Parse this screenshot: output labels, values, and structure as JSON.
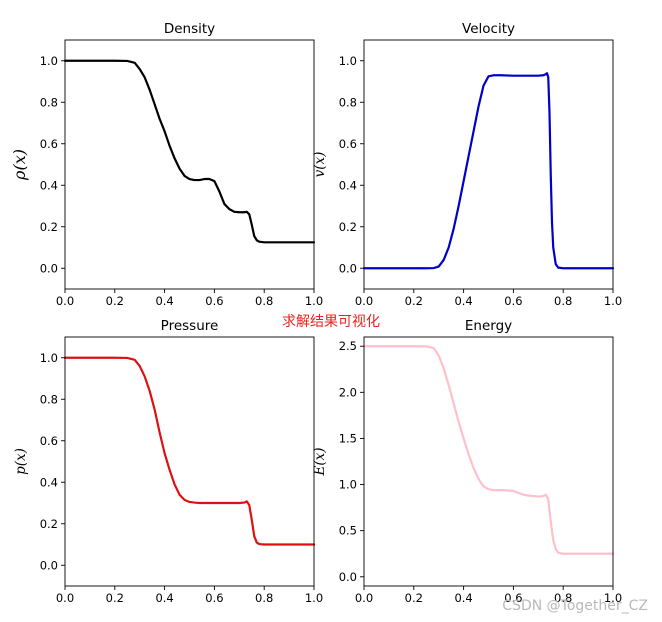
{
  "caption": "求解结果可视化",
  "watermark": "CSDN @Together_CZ",
  "chart_data": [
    {
      "type": "line",
      "title": "Density",
      "xlabel": "",
      "ylabel": "ρ(x)",
      "xlim": [
        0,
        1
      ],
      "ylim": [
        -0.1,
        1.1
      ],
      "xticks": [
        0.0,
        0.2,
        0.4,
        0.6,
        0.8,
        1.0
      ],
      "xtick_labels": [
        "0.0",
        "0.2",
        "0.4",
        "0.6",
        "0.8",
        "1.0"
      ],
      "yticks": [
        0.0,
        0.2,
        0.4,
        0.6,
        0.8,
        1.0
      ],
      "ytick_labels": [
        "0.0",
        "0.2",
        "0.4",
        "0.6",
        "0.8",
        "1.0"
      ],
      "color": "#000000",
      "series": [
        {
          "name": "density",
          "x": [
            0,
            0.05,
            0.1,
            0.15,
            0.2,
            0.25,
            0.28,
            0.3,
            0.32,
            0.34,
            0.36,
            0.38,
            0.4,
            0.42,
            0.44,
            0.46,
            0.48,
            0.5,
            0.52,
            0.54,
            0.56,
            0.58,
            0.6,
            0.62,
            0.64,
            0.66,
            0.68,
            0.7,
            0.72,
            0.73,
            0.74,
            0.75,
            0.76,
            0.77,
            0.78,
            0.8,
            0.85,
            0.9,
            0.95,
            1.0
          ],
          "y": [
            1.0,
            1.0,
            1.0,
            1.0,
            1.0,
            0.999,
            0.99,
            0.96,
            0.92,
            0.86,
            0.79,
            0.72,
            0.66,
            0.59,
            0.53,
            0.48,
            0.445,
            0.43,
            0.425,
            0.425,
            0.43,
            0.43,
            0.42,
            0.37,
            0.31,
            0.285,
            0.272,
            0.27,
            0.27,
            0.272,
            0.26,
            0.21,
            0.155,
            0.135,
            0.128,
            0.125,
            0.125,
            0.125,
            0.125,
            0.125
          ]
        }
      ]
    },
    {
      "type": "line",
      "title": "Velocity",
      "xlabel": "",
      "ylabel": "v(x)",
      "xlim": [
        0,
        1
      ],
      "ylim": [
        -0.1,
        1.1
      ],
      "xticks": [
        0.0,
        0.2,
        0.4,
        0.6,
        0.8,
        1.0
      ],
      "xtick_labels": [
        "0.0",
        "0.2",
        "0.4",
        "0.6",
        "0.8",
        "1.0"
      ],
      "yticks": [
        0.0,
        0.2,
        0.4,
        0.6,
        0.8,
        1.0
      ],
      "ytick_labels": [
        "0.0",
        "0.2",
        "0.4",
        "0.6",
        "0.8",
        "1.0"
      ],
      "color": "#0000cc",
      "series": [
        {
          "name": "velocity",
          "x": [
            0,
            0.1,
            0.2,
            0.25,
            0.28,
            0.3,
            0.32,
            0.34,
            0.36,
            0.38,
            0.4,
            0.42,
            0.44,
            0.46,
            0.48,
            0.5,
            0.52,
            0.55,
            0.6,
            0.65,
            0.7,
            0.72,
            0.73,
            0.735,
            0.74,
            0.745,
            0.75,
            0.755,
            0.76,
            0.77,
            0.78,
            0.8,
            0.85,
            0.9,
            1.0
          ],
          "y": [
            0.0,
            0.0,
            0.0,
            0.0,
            0.001,
            0.008,
            0.04,
            0.1,
            0.19,
            0.3,
            0.42,
            0.54,
            0.66,
            0.78,
            0.88,
            0.925,
            0.93,
            0.93,
            0.928,
            0.928,
            0.928,
            0.93,
            0.935,
            0.94,
            0.92,
            0.75,
            0.45,
            0.22,
            0.1,
            0.02,
            0.003,
            0.0,
            0.0,
            0.0,
            0.0
          ]
        }
      ]
    },
    {
      "type": "line",
      "title": "Pressure",
      "xlabel": "",
      "ylabel": "p(x)",
      "xlim": [
        0,
        1
      ],
      "ylim": [
        -0.1,
        1.1
      ],
      "xticks": [
        0.0,
        0.2,
        0.4,
        0.6,
        0.8,
        1.0
      ],
      "xtick_labels": [
        "0.0",
        "0.2",
        "0.4",
        "0.6",
        "0.8",
        "1.0"
      ],
      "yticks": [
        0.0,
        0.2,
        0.4,
        0.6,
        0.8,
        1.0
      ],
      "ytick_labels": [
        "0.0",
        "0.2",
        "0.4",
        "0.6",
        "0.8",
        "1.0"
      ],
      "color": "#dd1111",
      "series": [
        {
          "name": "pressure",
          "x": [
            0,
            0.05,
            0.1,
            0.15,
            0.2,
            0.25,
            0.28,
            0.3,
            0.32,
            0.34,
            0.36,
            0.38,
            0.4,
            0.42,
            0.44,
            0.46,
            0.48,
            0.5,
            0.52,
            0.54,
            0.6,
            0.65,
            0.7,
            0.72,
            0.73,
            0.74,
            0.75,
            0.76,
            0.77,
            0.78,
            0.8,
            0.85,
            0.9,
            0.95,
            1.0
          ],
          "y": [
            1.0,
            1.0,
            1.0,
            1.0,
            1.0,
            0.999,
            0.99,
            0.96,
            0.91,
            0.84,
            0.75,
            0.64,
            0.54,
            0.46,
            0.39,
            0.34,
            0.315,
            0.305,
            0.302,
            0.3,
            0.3,
            0.3,
            0.3,
            0.302,
            0.308,
            0.29,
            0.22,
            0.14,
            0.11,
            0.102,
            0.1,
            0.1,
            0.1,
            0.1,
            0.1
          ]
        }
      ]
    },
    {
      "type": "line",
      "title": "Energy",
      "xlabel": "",
      "ylabel": "E(x)",
      "xlim": [
        0,
        1
      ],
      "ylim": [
        -0.1,
        2.6
      ],
      "xticks": [
        0.0,
        0.2,
        0.4,
        0.6,
        0.8,
        1.0
      ],
      "xtick_labels": [
        "0.0",
        "0.2",
        "0.4",
        "0.6",
        "0.8",
        "1.0"
      ],
      "yticks": [
        0.0,
        0.5,
        1.0,
        1.5,
        2.0,
        2.5
      ],
      "ytick_labels": [
        "0.0",
        "0.5",
        "1.0",
        "1.5",
        "2.0",
        "2.5"
      ],
      "color": "#ffc0cb",
      "series": [
        {
          "name": "energy",
          "x": [
            0,
            0.05,
            0.1,
            0.15,
            0.2,
            0.25,
            0.28,
            0.3,
            0.32,
            0.34,
            0.36,
            0.38,
            0.4,
            0.42,
            0.44,
            0.46,
            0.48,
            0.5,
            0.52,
            0.54,
            0.56,
            0.58,
            0.6,
            0.62,
            0.64,
            0.66,
            0.68,
            0.7,
            0.72,
            0.73,
            0.74,
            0.75,
            0.76,
            0.77,
            0.78,
            0.8,
            0.85,
            0.9,
            0.95,
            1.0
          ],
          "y": [
            2.5,
            2.5,
            2.5,
            2.5,
            2.5,
            2.498,
            2.48,
            2.4,
            2.26,
            2.08,
            1.88,
            1.68,
            1.5,
            1.33,
            1.18,
            1.06,
            0.98,
            0.95,
            0.94,
            0.94,
            0.94,
            0.935,
            0.93,
            0.91,
            0.89,
            0.88,
            0.875,
            0.87,
            0.875,
            0.89,
            0.84,
            0.6,
            0.4,
            0.3,
            0.26,
            0.25,
            0.25,
            0.25,
            0.25,
            0.25
          ]
        }
      ]
    }
  ]
}
